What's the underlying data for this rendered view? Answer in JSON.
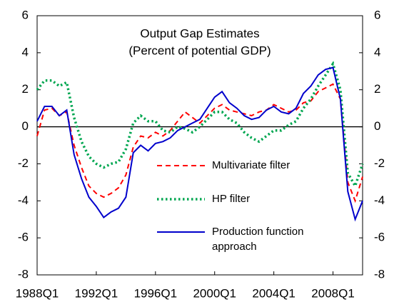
{
  "chart_data": {
    "type": "line",
    "title": "Output Gap Estimates",
    "subtitle": "(Percent of potential GDP)",
    "x": [
      1988,
      1988.5,
      1989,
      1989.5,
      1990,
      1990.5,
      1991,
      1991.5,
      1992,
      1992.5,
      1993,
      1993.5,
      1994,
      1994.5,
      1995,
      1995.5,
      1996,
      1996.5,
      1997,
      1997.5,
      1998,
      1998.5,
      1999,
      1999.5,
      2000,
      2000.5,
      2001,
      2001.5,
      2002,
      2002.5,
      2003,
      2003.5,
      2004,
      2004.5,
      2005,
      2005.5,
      2006,
      2006.5,
      2007,
      2007.5,
      2008,
      2008.5,
      2009,
      2009.5,
      2010
    ],
    "series": [
      {
        "name": "Multivariate filter",
        "color": "#ff0000",
        "dash": "dashed",
        "values": [
          -0.5,
          0.9,
          1.0,
          0.6,
          0.8,
          -1.0,
          -2.2,
          -3.2,
          -3.6,
          -3.8,
          -3.6,
          -3.3,
          -2.6,
          -1.1,
          -0.5,
          -0.6,
          -0.3,
          -0.5,
          -0.2,
          0.3,
          0.8,
          0.5,
          0.2,
          0.6,
          1.0,
          1.2,
          0.9,
          0.8,
          0.7,
          0.6,
          0.8,
          0.9,
          1.2,
          1.0,
          0.8,
          0.9,
          1.3,
          1.4,
          1.9,
          2.1,
          2.3,
          1.5,
          -3.0,
          -4.0,
          -2.7
        ]
      },
      {
        "name": "HP filter",
        "color": "#00a650",
        "dash": "dotted",
        "values": [
          2.0,
          2.5,
          2.5,
          2.2,
          2.4,
          0.5,
          -0.8,
          -1.6,
          -2.0,
          -2.2,
          -2.0,
          -1.9,
          -1.2,
          0.2,
          0.6,
          0.3,
          0.3,
          -0.2,
          -0.3,
          0.0,
          -0.1,
          -0.3,
          0.0,
          0.4,
          0.8,
          0.8,
          0.4,
          0.2,
          -0.3,
          -0.6,
          -0.8,
          -0.5,
          -0.2,
          -0.2,
          0.1,
          0.3,
          1.0,
          1.5,
          2.2,
          2.8,
          3.4,
          2.0,
          -2.5,
          -3.2,
          -2.0
        ]
      },
      {
        "name": "Production function approach",
        "color": "#0000cc",
        "dash": "solid",
        "values": [
          0.3,
          1.1,
          1.1,
          0.6,
          0.9,
          -1.5,
          -2.8,
          -3.8,
          -4.3,
          -4.9,
          -4.6,
          -4.4,
          -3.8,
          -1.4,
          -1.0,
          -1.3,
          -0.9,
          -0.8,
          -0.6,
          -0.2,
          0.0,
          0.2,
          0.4,
          1.0,
          1.6,
          1.9,
          1.3,
          1.0,
          0.6,
          0.4,
          0.5,
          0.9,
          1.1,
          0.8,
          0.7,
          1.0,
          1.8,
          2.2,
          2.8,
          3.1,
          3.2,
          1.5,
          -3.5,
          -5.0,
          -4.0
        ]
      }
    ],
    "xlim": [
      1988,
      2010
    ],
    "xticks": [
      {
        "value": 1988,
        "label": "1988Q1"
      },
      {
        "value": 1992,
        "label": "1992Q1"
      },
      {
        "value": 1996,
        "label": "1996Q1"
      },
      {
        "value": 2000,
        "label": "2000Q1"
      },
      {
        "value": 2004,
        "label": "2004Q1"
      },
      {
        "value": 2008,
        "label": "2008Q1"
      }
    ],
    "ylim": [
      -8,
      6
    ],
    "yticks": [
      -8,
      -6,
      -4,
      -2,
      0,
      2,
      4,
      6
    ],
    "y2lim": [
      -8,
      6
    ],
    "y2ticks": [
      -8,
      -6,
      -4,
      -2,
      0,
      2,
      4,
      6
    ],
    "grid": false
  }
}
